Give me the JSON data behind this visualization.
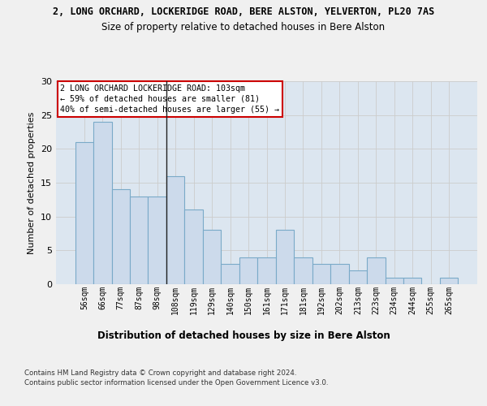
{
  "suptitle": "2, LONG ORCHARD, LOCKERIDGE ROAD, BERE ALSTON, YELVERTON, PL20 7AS",
  "title": "Size of property relative to detached houses in Bere Alston",
  "xlabel": "Distribution of detached houses by size in Bere Alston",
  "ylabel": "Number of detached properties",
  "categories": [
    "56sqm",
    "66sqm",
    "77sqm",
    "87sqm",
    "98sqm",
    "108sqm",
    "119sqm",
    "129sqm",
    "140sqm",
    "150sqm",
    "161sqm",
    "171sqm",
    "181sqm",
    "192sqm",
    "202sqm",
    "213sqm",
    "223sqm",
    "234sqm",
    "244sqm",
    "255sqm",
    "265sqm"
  ],
  "values": [
    21,
    24,
    14,
    13,
    13,
    16,
    11,
    8,
    3,
    4,
    4,
    8,
    4,
    3,
    3,
    2,
    4,
    1,
    1,
    0,
    1
  ],
  "bar_color": "#ccdaeb",
  "bar_edge_color": "#7aaac8",
  "vline_color": "#222222",
  "annotation_lines": [
    "2 LONG ORCHARD LOCKERIDGE ROAD: 103sqm",
    "← 59% of detached houses are smaller (81)",
    "40% of semi-detached houses are larger (55) →"
  ],
  "annotation_box_color": "#ffffff",
  "annotation_box_edge_color": "#cc0000",
  "ylim": [
    0,
    30
  ],
  "yticks": [
    0,
    5,
    10,
    15,
    20,
    25,
    30
  ],
  "grid_color": "#cccccc",
  "bg_color": "#dce6f0",
  "fig_bg_color": "#f0f0f0",
  "footer1": "Contains HM Land Registry data © Crown copyright and database right 2024.",
  "footer2": "Contains public sector information licensed under the Open Government Licence v3.0."
}
